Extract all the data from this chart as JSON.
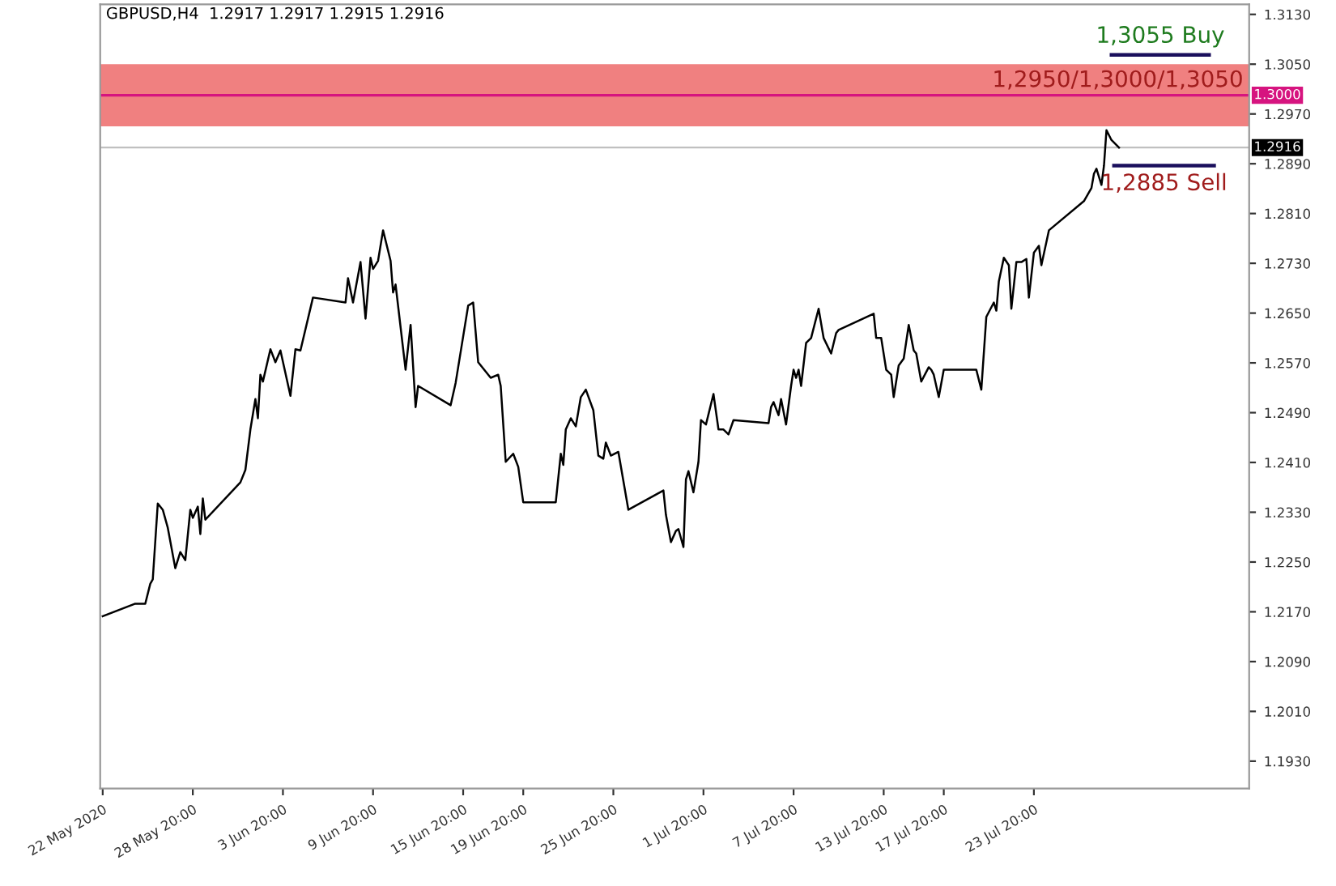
{
  "chart_data": {
    "type": "line",
    "title": "GBPUSD,H4  1.2917 1.2917 1.2915 1.2916",
    "xlim": [
      "2020-05-22T16:00",
      "2020-08-07T04:00"
    ],
    "ylim": [
      1.1886,
      1.3146
    ],
    "xticks": [
      {
        "value": "2020-05-22T20:00",
        "label": "22 May 2020"
      },
      {
        "value": "2020-05-28T20:00",
        "label": "28 May 20:00"
      },
      {
        "value": "2020-06-03T20:00",
        "label": "3 Jun 20:00"
      },
      {
        "value": "2020-06-09T20:00",
        "label": "9 Jun 20:00"
      },
      {
        "value": "2020-06-15T20:00",
        "label": "15 Jun 20:00"
      },
      {
        "value": "2020-06-19T20:00",
        "label": "19 Jun 20:00"
      },
      {
        "value": "2020-06-25T20:00",
        "label": "25 Jun 20:00"
      },
      {
        "value": "2020-07-01T20:00",
        "label": "1 Jul 20:00"
      },
      {
        "value": "2020-07-07T20:00",
        "label": "7 Jul 20:00"
      },
      {
        "value": "2020-07-13T20:00",
        "label": "13 Jul 20:00"
      },
      {
        "value": "2020-07-17T20:00",
        "label": "17 Jul 20:00"
      },
      {
        "value": "2020-07-23T20:00",
        "label": "23 Jul 20:00"
      }
    ],
    "yticks": [
      {
        "value": 1.193,
        "label": "1.1930"
      },
      {
        "value": 1.201,
        "label": "1.2010"
      },
      {
        "value": 1.209,
        "label": "1.2090"
      },
      {
        "value": 1.217,
        "label": "1.2170"
      },
      {
        "value": 1.225,
        "label": "1.2250"
      },
      {
        "value": 1.233,
        "label": "1.2330"
      },
      {
        "value": 1.241,
        "label": "1.2410"
      },
      {
        "value": 1.249,
        "label": "1.2490"
      },
      {
        "value": 1.257,
        "label": "1.2570"
      },
      {
        "value": 1.265,
        "label": "1.2650"
      },
      {
        "value": 1.273,
        "label": "1.2730"
      },
      {
        "value": 1.281,
        "label": "1.2810"
      },
      {
        "value": 1.289,
        "label": "1.2890"
      },
      {
        "value": 1.297,
        "label": "1.2970"
      },
      {
        "value": 1.305,
        "label": "1.3050"
      },
      {
        "value": 1.313,
        "label": "1.3130"
      }
    ],
    "grid": false,
    "legend": false,
    "marker": "none",
    "line_style": "solid",
    "series": [
      {
        "color": "#000000",
        "x": [
          "2020-05-22T20:00",
          "2020-05-25T00:00",
          "2020-05-25T16:00",
          "2020-05-26T00:00",
          "2020-05-26T04:00",
          "2020-05-26T12:00",
          "2020-05-26T20:00",
          "2020-05-27T04:00",
          "2020-05-27T16:00",
          "2020-05-28T00:00",
          "2020-05-28T08:00",
          "2020-05-28T16:00",
          "2020-05-28T20:00",
          "2020-05-29T04:00",
          "2020-05-29T08:00",
          "2020-05-29T12:00",
          "2020-05-29T16:00",
          "2020-06-01T00:00",
          "2020-06-01T08:00",
          "2020-06-01T16:00",
          "2020-06-02T00:00",
          "2020-06-02T04:00",
          "2020-06-02T08:00",
          "2020-06-02T12:00",
          "2020-06-03T00:00",
          "2020-06-03T08:00",
          "2020-06-03T16:00",
          "2020-06-04T08:00",
          "2020-06-04T16:00",
          "2020-06-05T00:00",
          "2020-06-05T20:00",
          "2020-06-08T00:00",
          "2020-06-08T04:00",
          "2020-06-08T12:00",
          "2020-06-09T00:00",
          "2020-06-09T08:00",
          "2020-06-09T16:00",
          "2020-06-09T20:00",
          "2020-06-10T04:00",
          "2020-06-10T12:00",
          "2020-06-11T00:00",
          "2020-06-11T04:00",
          "2020-06-11T08:00",
          "2020-06-12T00:00",
          "2020-06-12T08:00",
          "2020-06-12T16:00",
          "2020-06-12T20:00",
          "2020-06-15T00:00",
          "2020-06-15T08:00",
          "2020-06-16T04:00",
          "2020-06-16T12:00",
          "2020-06-16T20:00",
          "2020-06-17T16:00",
          "2020-06-18T04:00",
          "2020-06-18T08:00",
          "2020-06-18T16:00",
          "2020-06-19T04:00",
          "2020-06-19T12:00",
          "2020-06-19T20:00",
          "2020-06-22T00:00",
          "2020-06-22T08:00",
          "2020-06-22T12:00",
          "2020-06-22T16:00",
          "2020-06-23T00:00",
          "2020-06-23T08:00",
          "2020-06-23T16:00",
          "2020-06-24T00:00",
          "2020-06-24T12:00",
          "2020-06-24T20:00",
          "2020-06-25T04:00",
          "2020-06-25T08:00",
          "2020-06-25T16:00",
          "2020-06-26T04:00",
          "2020-06-26T20:00",
          "2020-06-29T04:00",
          "2020-06-29T08:00",
          "2020-06-29T16:00",
          "2020-06-30T00:00",
          "2020-06-30T04:00",
          "2020-06-30T12:00",
          "2020-06-30T16:00",
          "2020-06-30T20:00",
          "2020-07-01T04:00",
          "2020-07-01T12:00",
          "2020-07-01T16:00",
          "2020-07-02T00:00",
          "2020-07-02T12:00",
          "2020-07-02T20:00",
          "2020-07-03T04:00",
          "2020-07-03T12:00",
          "2020-07-03T20:00",
          "2020-07-06T04:00",
          "2020-07-06T08:00",
          "2020-07-06T12:00",
          "2020-07-06T20:00",
          "2020-07-07T00:00",
          "2020-07-07T08:00",
          "2020-07-07T16:00",
          "2020-07-07T20:00",
          "2020-07-08T00:00",
          "2020-07-08T04:00",
          "2020-07-08T08:00",
          "2020-07-08T16:00",
          "2020-07-09T00:00",
          "2020-07-09T12:00",
          "2020-07-09T20:00",
          "2020-07-10T08:00",
          "2020-07-10T16:00",
          "2020-07-10T20:00",
          "2020-07-13T04:00",
          "2020-07-13T08:00",
          "2020-07-13T16:00",
          "2020-07-14T00:00",
          "2020-07-14T08:00",
          "2020-07-14T12:00",
          "2020-07-14T20:00",
          "2020-07-15T04:00",
          "2020-07-15T12:00",
          "2020-07-15T20:00",
          "2020-07-16T00:00",
          "2020-07-16T08:00",
          "2020-07-16T20:00",
          "2020-07-17T00:00",
          "2020-07-17T04:00",
          "2020-07-17T12:00",
          "2020-07-17T20:00",
          "2020-07-20T00:00",
          "2020-07-20T08:00",
          "2020-07-20T16:00",
          "2020-07-21T04:00",
          "2020-07-21T08:00",
          "2020-07-21T12:00",
          "2020-07-21T20:00",
          "2020-07-22T04:00",
          "2020-07-22T08:00",
          "2020-07-22T16:00",
          "2020-07-23T00:00",
          "2020-07-23T08:00",
          "2020-07-23T12:00",
          "2020-07-23T20:00",
          "2020-07-24T04:00",
          "2020-07-24T08:00",
          "2020-07-24T20:00",
          "2020-07-27T04:00",
          "2020-07-27T16:00",
          "2020-07-27T20:00",
          "2020-07-28T00:00",
          "2020-07-28T08:00",
          "2020-07-28T12:00",
          "2020-07-28T16:00",
          "2020-07-29T00:00",
          "2020-07-29T12:00"
        ],
        "values": [
          1.2163,
          1.2183,
          1.2183,
          1.2215,
          1.2222,
          1.2344,
          1.2334,
          1.2305,
          1.224,
          1.2266,
          1.2253,
          1.2334,
          1.2321,
          1.2339,
          1.2295,
          1.2352,
          1.2318,
          1.2378,
          1.2398,
          1.2463,
          1.2512,
          1.2481,
          1.2551,
          1.254,
          1.2592,
          1.2571,
          1.259,
          1.2517,
          1.2592,
          1.259,
          1.2675,
          1.2667,
          1.2706,
          1.2667,
          1.2732,
          1.2641,
          1.2739,
          1.2721,
          1.2734,
          1.2783,
          1.2734,
          1.2683,
          1.2696,
          1.2559,
          1.2631,
          1.2499,
          1.2533,
          1.2502,
          1.2538,
          1.2662,
          1.2667,
          1.2571,
          1.2546,
          1.2551,
          1.2533,
          1.2411,
          1.2424,
          1.2403,
          1.2346,
          1.2346,
          1.2424,
          1.2406,
          1.2463,
          1.2481,
          1.2468,
          1.2515,
          1.2527,
          1.2494,
          1.2421,
          1.2416,
          1.2442,
          1.2421,
          1.2427,
          1.2334,
          1.2365,
          1.2326,
          1.2282,
          1.23,
          1.2303,
          1.2274,
          1.2383,
          1.2396,
          1.2362,
          1.2411,
          1.2478,
          1.2471,
          1.252,
          1.2463,
          1.2463,
          1.2455,
          1.2478,
          1.2473,
          1.2499,
          1.2507,
          1.2486,
          1.2512,
          1.2471,
          1.2533,
          1.2559,
          1.2546,
          1.2559,
          1.2533,
          1.2602,
          1.261,
          1.2657,
          1.261,
          1.2585,
          1.2618,
          1.2623,
          1.2649,
          1.261,
          1.261,
          1.2559,
          1.2551,
          1.2515,
          1.2566,
          1.2577,
          1.2631,
          1.259,
          1.2585,
          1.254,
          1.2563,
          1.2559,
          1.2551,
          1.2515,
          1.2559,
          1.2559,
          1.2527,
          1.2644,
          1.2667,
          1.2654,
          1.2701,
          1.2739,
          1.2727,
          1.2657,
          1.2732,
          1.2732,
          1.2737,
          1.2675,
          1.2747,
          1.2758,
          1.2727,
          1.2783,
          1.283,
          1.2851,
          1.2874,
          1.2882,
          1.2856,
          1.2887,
          1.2944,
          1.2928,
          1.2916
        ]
      },
      {
        "color": "#1a0f5c",
        "x": [
          "2020-07-29T00:00",
          "2020-08-04T12:00"
        ],
        "values": [
          1.3065,
          1.3065
        ]
      },
      {
        "color": "#1a0f5c",
        "x": [
          "2020-07-29T04:00",
          "2020-08-04T20:00"
        ],
        "values": [
          1.2887,
          1.2887
        ]
      }
    ],
    "bands": [
      {
        "axis": "y",
        "from": 1.295,
        "to": 1.305,
        "label": "1,2950/1,3000/1,3050",
        "color": "#f08080"
      }
    ],
    "ref_lines": [
      {
        "axis": "y",
        "value": 1.3,
        "label": "1.3000",
        "color": "#d6147f"
      },
      {
        "axis": "y",
        "value": 1.2916,
        "label": "1.2916",
        "color": "#c0c0c0"
      }
    ],
    "annotations": [
      "1,3055 Buy",
      "1,2885 Sell"
    ]
  }
}
